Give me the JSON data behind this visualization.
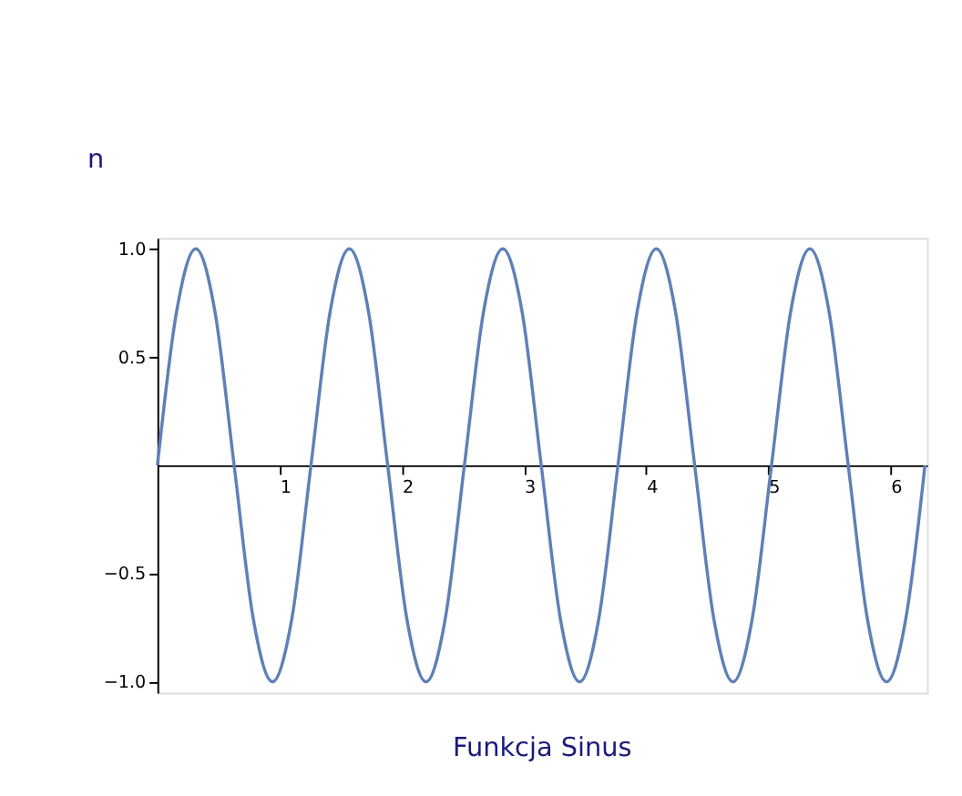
{
  "chart_data": {
    "type": "line",
    "title": "Funkcja Sinus",
    "annotations": [
      "n"
    ],
    "x": [
      0,
      0.157,
      0.314,
      0.471,
      0.628,
      0.785,
      0.942,
      1.1,
      1.257,
      1.414,
      1.571,
      1.728,
      1.885,
      2.042,
      2.199,
      2.356,
      2.513,
      2.67,
      2.827,
      2.985,
      3.142,
      3.299,
      3.456,
      3.613,
      3.77,
      3.927,
      4.084,
      4.241,
      4.398,
      4.555,
      4.712,
      4.869,
      5.027,
      5.184,
      5.341,
      5.498,
      5.655,
      5.812,
      5.969,
      6.126,
      6.283
    ],
    "series": [
      {
        "color": "#5e81b5",
        "values": [
          0,
          0.71,
          1,
          0.71,
          0,
          -0.71,
          -1,
          -0.71,
          0,
          0.71,
          1,
          0.71,
          0,
          -0.71,
          -1,
          -0.71,
          0,
          0.71,
          1,
          0.71,
          0,
          -0.71,
          -1,
          -0.71,
          0,
          0.71,
          1,
          0.71,
          0,
          -0.71,
          -1,
          -0.71,
          0,
          0.71,
          1,
          0.71,
          0,
          -0.71,
          -1,
          -0.71,
          0
        ]
      }
    ],
    "xlim": [
      0,
      6.3
    ],
    "ylim": [
      -1.05,
      1.05
    ],
    "xticks": [
      1,
      2,
      3,
      4,
      5,
      6
    ],
    "yticks": [
      {
        "value": -1,
        "label": "−1.0"
      },
      {
        "value": -0.5,
        "label": "−0.5"
      },
      {
        "value": 0.5,
        "label": "0.5"
      },
      {
        "value": 1,
        "label": "1.0"
      }
    ],
    "grid": false,
    "marker": "none",
    "line_style": "solid"
  }
}
